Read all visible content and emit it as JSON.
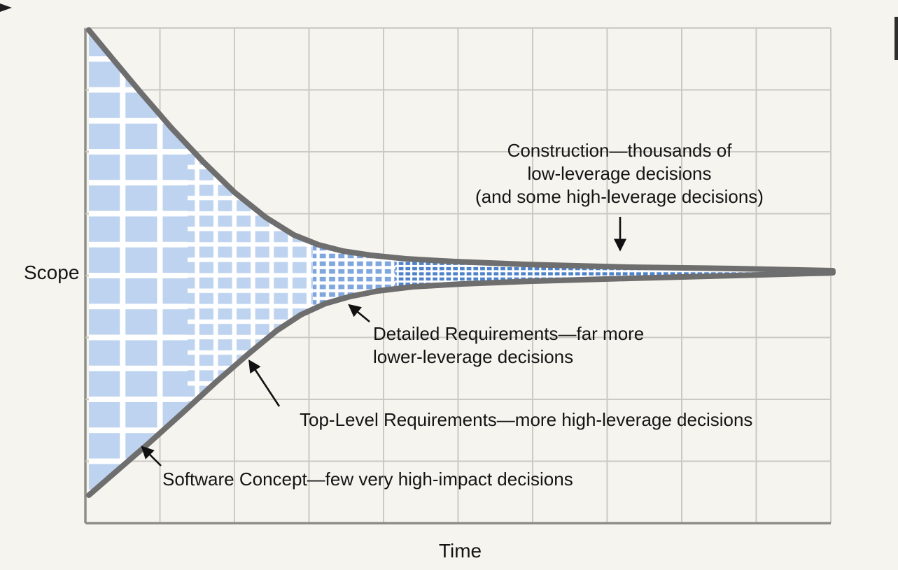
{
  "axes": {
    "y_label": "Scope",
    "x_label": "Time"
  },
  "annotations": {
    "construction": {
      "lines": [
        "Construction—thousands of",
        "low-leverage decisions",
        "(and some high-leverage decisions)"
      ]
    },
    "detailed_requirements": {
      "lines": [
        "Detailed Requirements—far more",
        "lower-leverage decisions"
      ]
    },
    "top_level_requirements": {
      "lines": [
        "Top-Level Requirements—more high-leverage decisions"
      ]
    },
    "software_concept": {
      "lines": [
        "Software Concept—few very high-impact decisions"
      ]
    }
  },
  "colors": {
    "background": "#f6f4ee",
    "funnel_fill": "#bed3ef",
    "funnel_fill_medium": "#7fa7de",
    "funnel_fill_dense": "#4e82ca",
    "funnel_outline": "#6e6e6e",
    "grid_line": "#cac9c2",
    "axis_line": "#8e8e88",
    "inner_grid": "#ffffff",
    "text": "#141414"
  }
}
